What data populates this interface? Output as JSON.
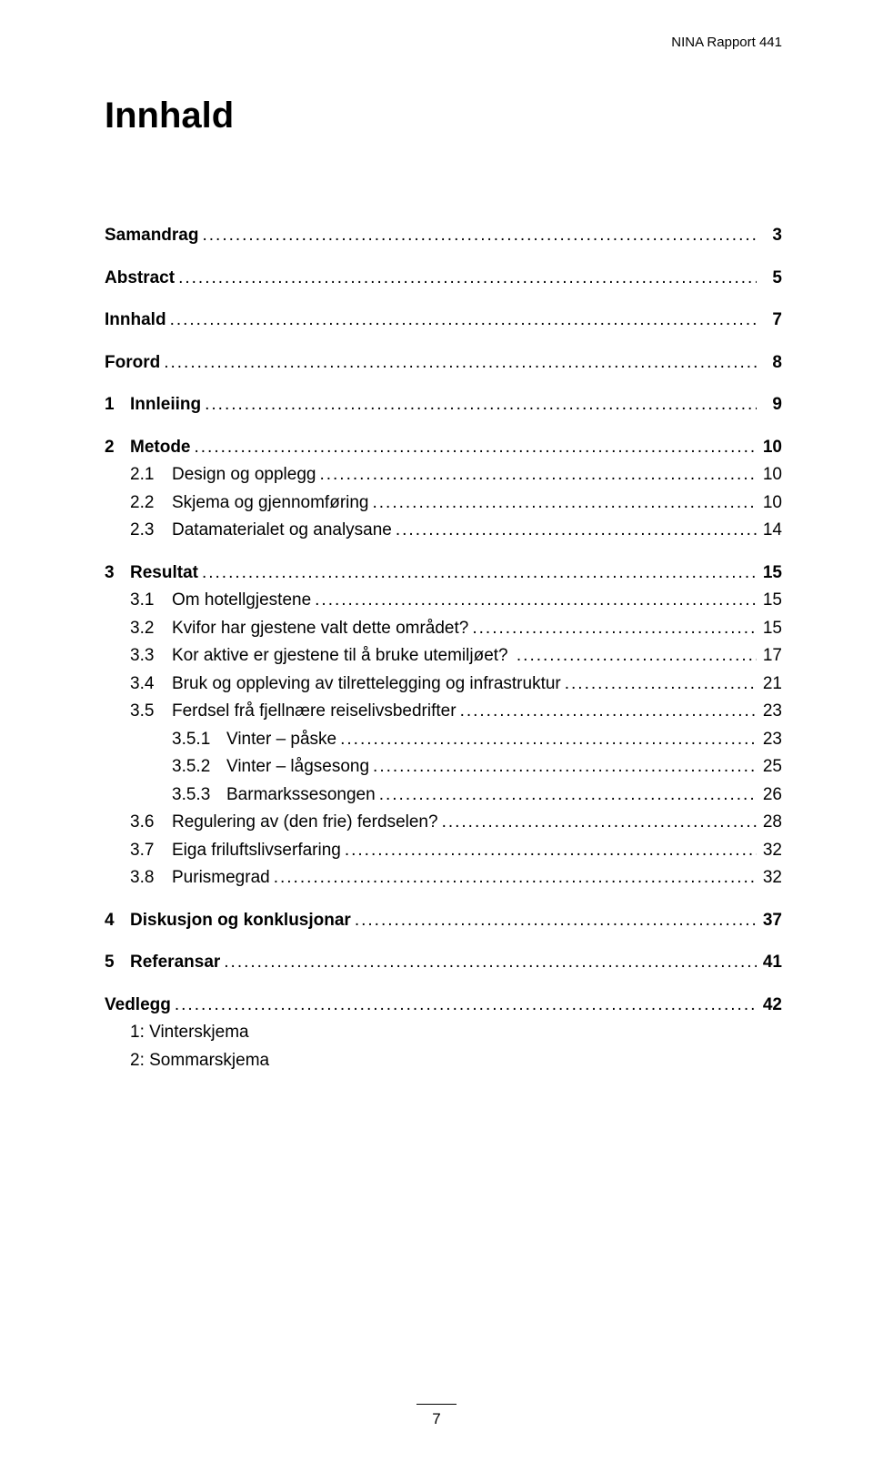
{
  "header": {
    "report": "NINA Rapport 441"
  },
  "title": "Innhald",
  "toc": [
    {
      "cls": "plain0",
      "num": "",
      "label": "Samandrag",
      "page": "3"
    },
    {
      "cls": "plain0",
      "num": "",
      "label": "Abstract",
      "page": "5"
    },
    {
      "cls": "plain0",
      "num": "",
      "label": "Innhald",
      "page": "7"
    },
    {
      "cls": "plain0",
      "num": "",
      "label": "Forord",
      "page": "8"
    },
    {
      "cls": "lvl0",
      "num": "1",
      "label": "Innleiing",
      "page": "9"
    },
    {
      "cls": "lvl0",
      "num": "2",
      "label": "Metode",
      "page": "10"
    },
    {
      "cls": "lvl1",
      "num": "2.1",
      "label": "Design og opplegg",
      "page": "10"
    },
    {
      "cls": "lvl1",
      "num": "2.2",
      "label": "Skjema og gjennomføring",
      "page": "10"
    },
    {
      "cls": "lvl1",
      "num": "2.3",
      "label": "Datamaterialet og analysane",
      "page": "14"
    },
    {
      "cls": "lvl0",
      "num": "3",
      "label": "Resultat",
      "page": "15"
    },
    {
      "cls": "lvl1",
      "num": "3.1",
      "label": "Om hotellgjestene",
      "page": "15"
    },
    {
      "cls": "lvl1",
      "num": "3.2",
      "label": "Kvifor har gjestene valt dette området?",
      "page": "15"
    },
    {
      "cls": "lvl1",
      "num": "3.3",
      "label": "Kor aktive er gjestene til å bruke utemiljøet? ",
      "page": "17"
    },
    {
      "cls": "lvl1",
      "num": "3.4",
      "label": "Bruk og oppleving av tilrettelegging og infrastruktur",
      "page": "21"
    },
    {
      "cls": "lvl1",
      "num": "3.5",
      "label": "Ferdsel frå fjellnære reiselivsbedrifter",
      "page": "23"
    },
    {
      "cls": "lvl2",
      "num": "3.5.1",
      "label": "Vinter – påske",
      "page": "23"
    },
    {
      "cls": "lvl2",
      "num": "3.5.2",
      "label": "Vinter – lågsesong",
      "page": "25"
    },
    {
      "cls": "lvl2",
      "num": "3.5.3",
      "label": "Barmarkssesongen",
      "page": "26"
    },
    {
      "cls": "lvl1",
      "num": "3.6",
      "label": "Regulering av (den frie) ferdselen?",
      "page": "28"
    },
    {
      "cls": "lvl1",
      "num": "3.7",
      "label": "Eiga friluftslivserfaring",
      "page": "32"
    },
    {
      "cls": "lvl1",
      "num": "3.8",
      "label": "Purismegrad",
      "page": "32"
    },
    {
      "cls": "lvl0",
      "num": "4",
      "label": "Diskusjon og konklusjonar",
      "page": "37"
    },
    {
      "cls": "lvl0",
      "num": "5",
      "label": "Referansar",
      "page": "41"
    },
    {
      "cls": "plain0",
      "num": "",
      "label": "Vedlegg",
      "page": "42"
    },
    {
      "cls": "plain1",
      "num": "",
      "label": "1: Vinterskjema",
      "page": ""
    },
    {
      "cls": "plain1",
      "num": "",
      "label": "2: Sommarskjema",
      "page": ""
    }
  ],
  "footer": {
    "pagenum": "7"
  },
  "colors": {
    "text": "#000000",
    "background": "#ffffff"
  }
}
